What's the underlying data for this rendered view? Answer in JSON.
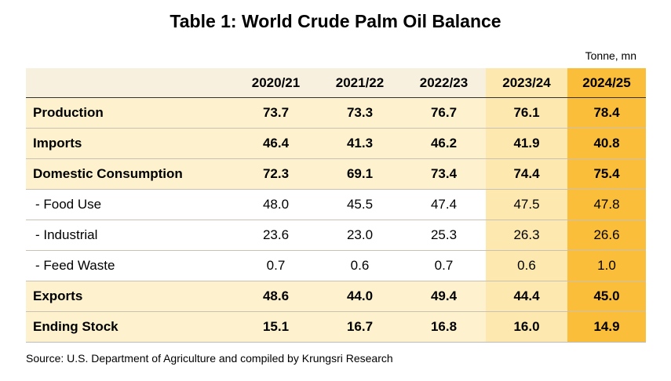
{
  "chart_data": {
    "type": "table",
    "title": "Table 1: World Crude Palm Oil Balance",
    "unit": "Tonne, mn",
    "columns": [
      "2020/21",
      "2021/22",
      "2022/23",
      "2023/24",
      "2024/25"
    ],
    "rows": [
      {
        "label": "Production",
        "values": [
          "73.7",
          "73.3",
          "76.7",
          "76.1",
          "78.4"
        ],
        "bold": true
      },
      {
        "label": "Imports",
        "values": [
          "46.4",
          "41.3",
          "46.2",
          "41.9",
          "40.8"
        ],
        "bold": true
      },
      {
        "label": "Domestic Consumption",
        "values": [
          "72.3",
          "69.1",
          "73.4",
          "74.4",
          "75.4"
        ],
        "bold": true
      },
      {
        "label": " - Food Use",
        "values": [
          "48.0",
          "45.5",
          "47.4",
          "47.5",
          "47.8"
        ],
        "bold": false
      },
      {
        "label": " - Industrial",
        "values": [
          "23.6",
          "23.0",
          "25.3",
          "26.3",
          "26.6"
        ],
        "bold": false
      },
      {
        "label": " - Feed Waste",
        "values": [
          "0.7",
          "0.6",
          "0.7",
          "0.6",
          "1.0"
        ],
        "bold": false
      },
      {
        "label": "Exports",
        "values": [
          "48.6",
          "44.0",
          "49.4",
          "44.4",
          "45.0"
        ],
        "bold": true
      },
      {
        "label": "Ending Stock",
        "values": [
          "15.1",
          "16.7",
          "16.8",
          "16.0",
          "14.9"
        ],
        "bold": true
      }
    ],
    "source": "Source: U.S. Department of Agriculture and compiled by Krungsri Research",
    "colors": {
      "header_band": "#f7f0de",
      "light_col": "#fdf2cd",
      "mid_col": "#fde9b0",
      "highlight_col": "#fbbe3b"
    }
  }
}
